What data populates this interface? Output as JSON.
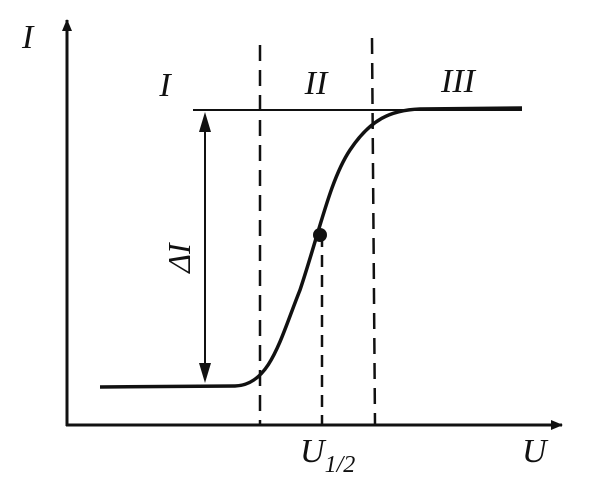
{
  "axes": {
    "y_label": "I",
    "x_label": "U"
  },
  "regions": [
    {
      "label": "I"
    },
    {
      "label": "II"
    },
    {
      "label": "III"
    }
  ],
  "wave_height_label": "ΔI",
  "half_wave": {
    "label": "U",
    "subscript": "1/2"
  }
}
